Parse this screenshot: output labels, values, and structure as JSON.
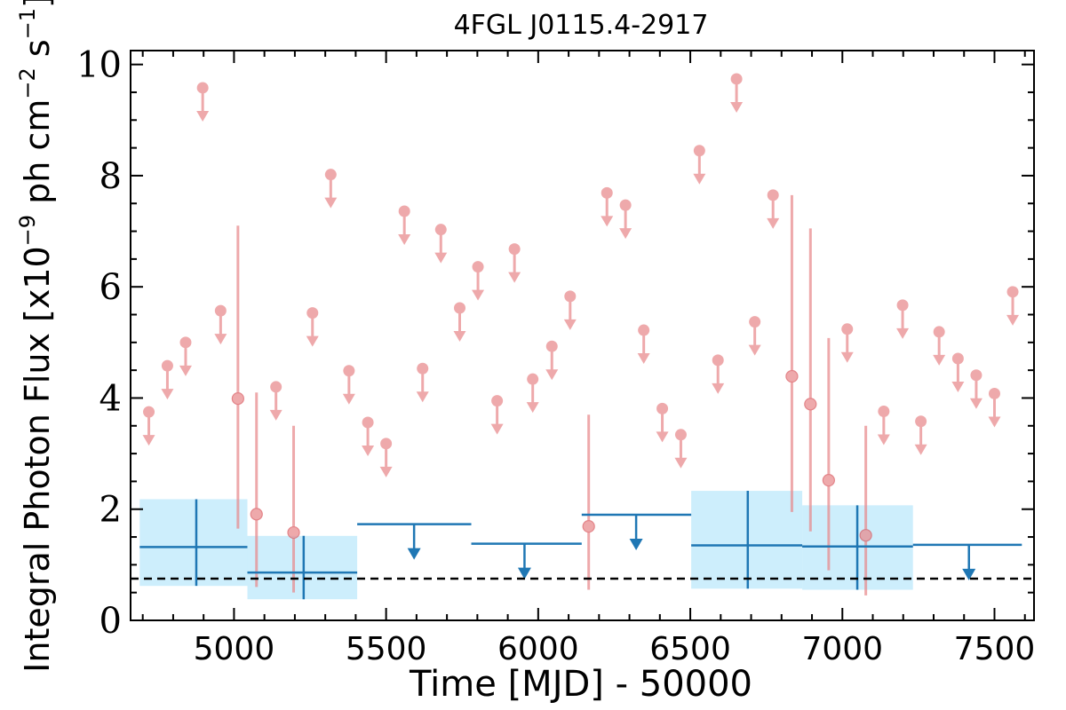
{
  "chart_data": {
    "type": "scatter",
    "title": "4FGL J0115.4-2917",
    "xlabel": "Time [MJD] - 50000",
    "ylabel": "Integral Photon Flux [x10",
    "ylabel_exp": "−9",
    "ylabel_mid": " ph cm",
    "ylabel_exp2": "−2",
    "ylabel_end": " s",
    "ylabel_exp3": "−1",
    "ylabel_close": "]",
    "xlim": [
      4660,
      7630
    ],
    "ylim": [
      0,
      10.25
    ],
    "xticks": [
      5000,
      5500,
      6000,
      6500,
      7000,
      7500
    ],
    "yticks": [
      0,
      2,
      4,
      6,
      8,
      10
    ],
    "colors": {
      "short_bins": "#e8898c",
      "long_bins": "#1f77b4",
      "long_band": "#cdeefc",
      "baseline": "#000000"
    },
    "baseline": 0.75,
    "short_bin_upper_limits": [
      {
        "x": 4720,
        "y": 3.75
      },
      {
        "x": 4781,
        "y": 4.58
      },
      {
        "x": 4841,
        "y": 5.0
      },
      {
        "x": 4897,
        "y": 9.58
      },
      {
        "x": 4956,
        "y": 5.57
      },
      {
        "x": 5138,
        "y": 4.2
      },
      {
        "x": 5258,
        "y": 5.53
      },
      {
        "x": 5318,
        "y": 8.02
      },
      {
        "x": 5378,
        "y": 4.49
      },
      {
        "x": 5440,
        "y": 3.56
      },
      {
        "x": 5500,
        "y": 3.18
      },
      {
        "x": 5560,
        "y": 7.36
      },
      {
        "x": 5620,
        "y": 4.53
      },
      {
        "x": 5680,
        "y": 7.03
      },
      {
        "x": 5742,
        "y": 5.62
      },
      {
        "x": 5802,
        "y": 6.36
      },
      {
        "x": 5865,
        "y": 3.95
      },
      {
        "x": 5922,
        "y": 6.68
      },
      {
        "x": 5982,
        "y": 4.34
      },
      {
        "x": 6045,
        "y": 4.93
      },
      {
        "x": 6105,
        "y": 5.83
      },
      {
        "x": 6226,
        "y": 7.69
      },
      {
        "x": 6287,
        "y": 7.47
      },
      {
        "x": 6347,
        "y": 5.22
      },
      {
        "x": 6408,
        "y": 3.81
      },
      {
        "x": 6469,
        "y": 3.34
      },
      {
        "x": 6530,
        "y": 8.45
      },
      {
        "x": 6591,
        "y": 4.68
      },
      {
        "x": 6652,
        "y": 9.74
      },
      {
        "x": 6712,
        "y": 5.37
      },
      {
        "x": 6772,
        "y": 7.65
      },
      {
        "x": 7016,
        "y": 5.24
      },
      {
        "x": 7136,
        "y": 3.76
      },
      {
        "x": 7198,
        "y": 5.67
      },
      {
        "x": 7258,
        "y": 3.58
      },
      {
        "x": 7318,
        "y": 5.19
      },
      {
        "x": 7380,
        "y": 4.71
      },
      {
        "x": 7440,
        "y": 4.41
      },
      {
        "x": 7500,
        "y": 4.08
      },
      {
        "x": 7560,
        "y": 5.91
      }
    ],
    "short_bin_detections": [
      {
        "x": 5013,
        "y": 3.99,
        "err_low": 1.65,
        "err_high": 7.1
      },
      {
        "x": 5074,
        "y": 1.91,
        "err_low": 0.6,
        "err_high": 4.1
      },
      {
        "x": 5196,
        "y": 1.58,
        "err_low": 0.5,
        "err_high": 3.5
      },
      {
        "x": 6166,
        "y": 1.69,
        "err_low": 0.55,
        "err_high": 3.7
      },
      {
        "x": 6834,
        "y": 4.39,
        "err_low": 1.95,
        "err_high": 7.65
      },
      {
        "x": 6895,
        "y": 3.89,
        "err_low": 1.6,
        "err_high": 7.05
      },
      {
        "x": 6955,
        "y": 2.52,
        "err_low": 0.9,
        "err_high": 5.08
      },
      {
        "x": 7077,
        "y": 1.53,
        "err_low": 0.45,
        "err_high": 3.5
      }
    ],
    "long_bin_detections": [
      {
        "x": 4876,
        "x0": 4690,
        "x1": 5044,
        "y": 1.32,
        "err_low": 0.62,
        "err_high": 2.18
      },
      {
        "x": 5229,
        "x0": 5044,
        "x1": 5405,
        "y": 0.86,
        "err_low": 0.38,
        "err_high": 1.52
      },
      {
        "x": 6689,
        "x0": 6503,
        "x1": 6868,
        "y": 1.35,
        "err_low": 0.57,
        "err_high": 2.33
      },
      {
        "x": 7049,
        "x0": 6868,
        "x1": 7232,
        "y": 1.33,
        "err_low": 0.55,
        "err_high": 2.07
      }
    ],
    "long_bin_upper_limits": [
      {
        "x": 5592,
        "x0": 5405,
        "x1": 5780,
        "y": 1.73
      },
      {
        "x": 5955,
        "x0": 5780,
        "x1": 6143,
        "y": 1.38
      },
      {
        "x": 6322,
        "x0": 6143,
        "x1": 6503,
        "y": 1.9
      },
      {
        "x": 7416,
        "x0": 7232,
        "x1": 7590,
        "y": 1.36
      }
    ]
  }
}
